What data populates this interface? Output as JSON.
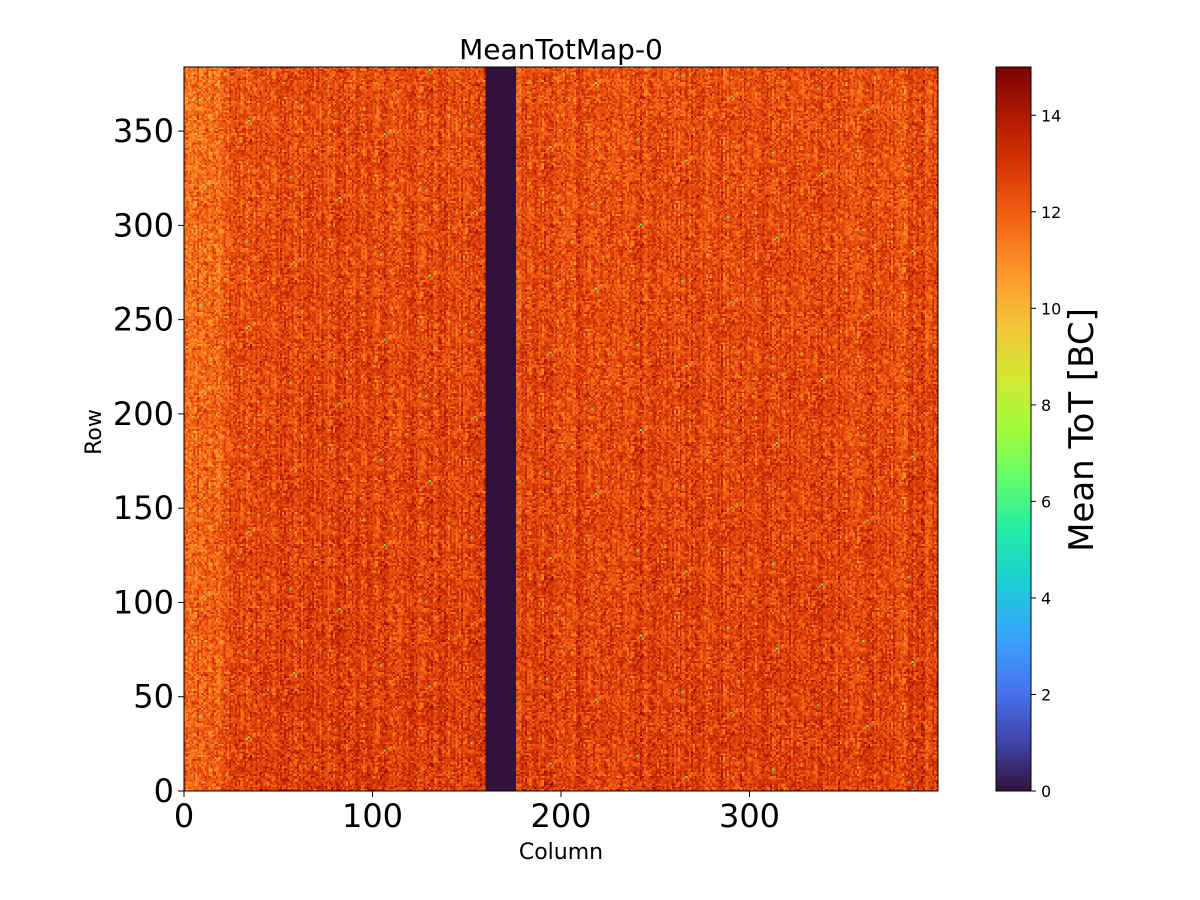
{
  "chart_data": {
    "type": "heatmap",
    "title": "MeanTotMap-0",
    "xlabel": "Column",
    "ylabel": "Row",
    "xlim": [
      0,
      400
    ],
    "ylim": [
      0,
      384
    ],
    "x_ticks": [
      0,
      100,
      200,
      300
    ],
    "y_ticks": [
      0,
      50,
      100,
      150,
      200,
      250,
      300,
      350
    ],
    "grid": false,
    "colormap": "turbo",
    "colorbar": {
      "label": "Mean ToT [BC]",
      "range": [
        0,
        15
      ],
      "ticks": [
        0,
        2,
        4,
        6,
        8,
        10,
        12,
        14
      ]
    },
    "typical_value_range": [
      11,
      14
    ],
    "dead_columns": [
      160,
      176
    ],
    "dead_value": 0
  }
}
